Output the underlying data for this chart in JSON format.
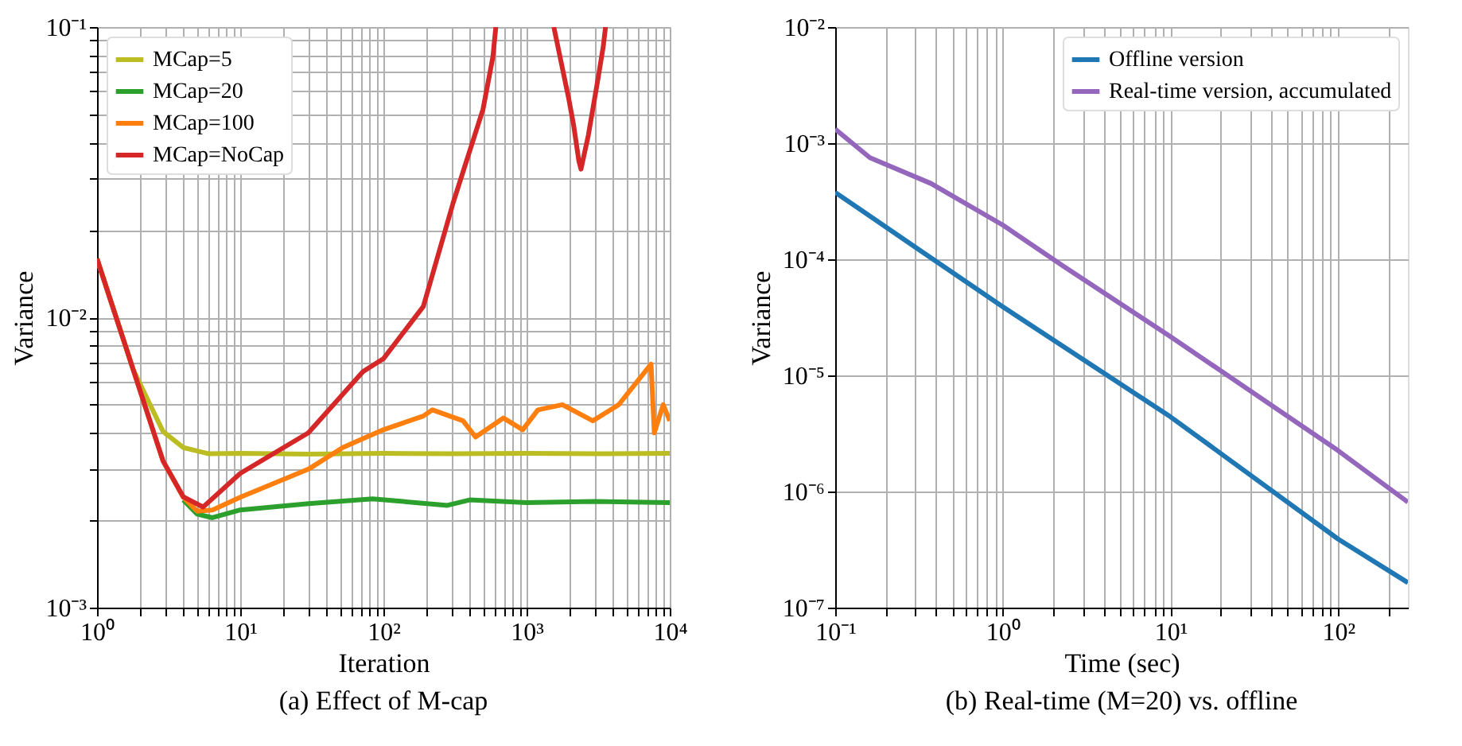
{
  "chart_data": [
    {
      "type": "line",
      "title": "(a) Effect of M-cap",
      "xlabel": "Iteration",
      "ylabel": "Variance",
      "log": "xy",
      "grid": true,
      "legend": "top left",
      "xlim": [
        1,
        10000
      ],
      "ylim": [
        0.001,
        0.1
      ],
      "xticks": [
        {
          "value": 1,
          "label": "10⁰"
        },
        {
          "value": 2,
          "label": null
        },
        {
          "value": 3,
          "label": null
        },
        {
          "value": 4,
          "label": null
        },
        {
          "value": 5,
          "label": null
        },
        {
          "value": 6,
          "label": null
        },
        {
          "value": 7,
          "label": null
        },
        {
          "value": 8,
          "label": null
        },
        {
          "value": 9,
          "label": null
        },
        {
          "value": 10,
          "label": "10¹"
        },
        {
          "value": 20,
          "label": null
        },
        {
          "value": 30,
          "label": null
        },
        {
          "value": 40,
          "label": null
        },
        {
          "value": 50,
          "label": null
        },
        {
          "value": 60,
          "label": null
        },
        {
          "value": 70,
          "label": null
        },
        {
          "value": 80,
          "label": null
        },
        {
          "value": 90,
          "label": null
        },
        {
          "value": 100,
          "label": "10²"
        },
        {
          "value": 200,
          "label": null
        },
        {
          "value": 300,
          "label": null
        },
        {
          "value": 400,
          "label": null
        },
        {
          "value": 500,
          "label": null
        },
        {
          "value": 600,
          "label": null
        },
        {
          "value": 700,
          "label": null
        },
        {
          "value": 800,
          "label": null
        },
        {
          "value": 900,
          "label": null
        },
        {
          "value": 1000,
          "label": "10³"
        },
        {
          "value": 2000,
          "label": null
        },
        {
          "value": 3000,
          "label": null
        },
        {
          "value": 4000,
          "label": null
        },
        {
          "value": 5000,
          "label": null
        },
        {
          "value": 6000,
          "label": null
        },
        {
          "value": 7000,
          "label": null
        },
        {
          "value": 8000,
          "label": null
        },
        {
          "value": 9000,
          "label": null
        },
        {
          "value": 10000,
          "label": "10⁴"
        }
      ],
      "yticks": [
        {
          "value": 0.001,
          "label": "10⁻³"
        },
        {
          "value": 0.002,
          "label": null
        },
        {
          "value": 0.003,
          "label": null
        },
        {
          "value": 0.004,
          "label": null
        },
        {
          "value": 0.005,
          "label": null
        },
        {
          "value": 0.006,
          "label": null
        },
        {
          "value": 0.007,
          "label": null
        },
        {
          "value": 0.008,
          "label": null
        },
        {
          "value": 0.009,
          "label": null
        },
        {
          "value": 0.01,
          "label": "10⁻²"
        },
        {
          "value": 0.02,
          "label": null
        },
        {
          "value": 0.03,
          "label": null
        },
        {
          "value": 0.04,
          "label": null
        },
        {
          "value": 0.05,
          "label": null
        },
        {
          "value": 0.06,
          "label": null
        },
        {
          "value": 0.07,
          "label": null
        },
        {
          "value": 0.08,
          "label": null
        },
        {
          "value": 0.09,
          "label": null
        },
        {
          "value": 0.1,
          "label": "10⁻¹"
        }
      ],
      "series": [
        {
          "name": "MCap=5",
          "color": "#bcbd22",
          "x": [
            1,
            1.79,
            2.89,
            4,
            6,
            10,
            30,
            100,
            300,
            1000,
            3000,
            10000
          ],
          "values": [
            0.0159,
            0.0066,
            0.00404,
            0.00356,
            0.00339,
            0.0034,
            0.00338,
            0.0034,
            0.00339,
            0.0034,
            0.00339,
            0.0034
          ]
        },
        {
          "name": "MCap=20",
          "color": "#2ca02c",
          "x": [
            4,
            5,
            6.4,
            10,
            30,
            84,
            280,
            400,
            1000,
            3000,
            10000
          ],
          "values": [
            0.00235,
            0.0021,
            0.00204,
            0.00217,
            0.00228,
            0.00237,
            0.00225,
            0.00235,
            0.0023,
            0.00232,
            0.0023
          ]
        },
        {
          "name": "MCap=100",
          "color": "#ff7f0e",
          "x": [
            1,
            2.89,
            4,
            5,
            6.4,
            10,
            30,
            52,
            100,
            190,
            220,
            360,
            440,
            690,
            940,
            1200,
            1780,
            2900,
            4400,
            7400,
            7800,
            9000,
            10000
          ],
          "values": [
            0.0159,
            0.0032,
            0.0024,
            0.00215,
            0.00217,
            0.0024,
            0.003,
            0.00356,
            0.0041,
            0.00457,
            0.0048,
            0.0044,
            0.00387,
            0.0045,
            0.0041,
            0.0048,
            0.005,
            0.0044,
            0.005,
            0.0069,
            0.004,
            0.005,
            0.0044
          ]
        },
        {
          "name": "MCap=NoCap",
          "color": "#d62728",
          "x": [
            1,
            2.89,
            4,
            5.5,
            10,
            29.9,
            72,
            100,
            190,
            307,
            496,
            582,
            610,
            1000,
            1550,
            1970,
            2130,
            2320,
            2400,
            2700,
            3160,
            3430,
            3560
          ],
          "values": [
            0.0159,
            0.0032,
            0.00241,
            0.00222,
            0.0029,
            0.004,
            0.0065,
            0.0072,
            0.0109,
            0.0248,
            0.052,
            0.079,
            0.1,
            null,
            0.1,
            0.0566,
            0.046,
            0.0345,
            0.0324,
            0.0424,
            0.0667,
            0.0855,
            0.1
          ]
        }
      ]
    },
    {
      "type": "line",
      "title": "(b) Real-time (M=20) vs. offline",
      "xlabel": "Time (sec)",
      "ylabel": "Variance",
      "log": "xy",
      "grid": true,
      "legend": "top right",
      "xlim": [
        0.1,
        261
      ],
      "ylim": [
        1e-07,
        0.01
      ],
      "xticks": [
        {
          "value": 0.1,
          "label": "10⁻¹"
        },
        {
          "value": 0.2,
          "label": null
        },
        {
          "value": 0.3,
          "label": null
        },
        {
          "value": 0.4,
          "label": null
        },
        {
          "value": 0.5,
          "label": null
        },
        {
          "value": 0.6,
          "label": null
        },
        {
          "value": 0.7,
          "label": null
        },
        {
          "value": 0.8,
          "label": null
        },
        {
          "value": 0.9,
          "label": null
        },
        {
          "value": 1,
          "label": "10⁰"
        },
        {
          "value": 2,
          "label": null
        },
        {
          "value": 3,
          "label": null
        },
        {
          "value": 4,
          "label": null
        },
        {
          "value": 5,
          "label": null
        },
        {
          "value": 6,
          "label": null
        },
        {
          "value": 7,
          "label": null
        },
        {
          "value": 8,
          "label": null
        },
        {
          "value": 9,
          "label": null
        },
        {
          "value": 10,
          "label": "10¹"
        },
        {
          "value": 20,
          "label": null
        },
        {
          "value": 30,
          "label": null
        },
        {
          "value": 40,
          "label": null
        },
        {
          "value": 50,
          "label": null
        },
        {
          "value": 60,
          "label": null
        },
        {
          "value": 70,
          "label": null
        },
        {
          "value": 80,
          "label": null
        },
        {
          "value": 90,
          "label": null
        },
        {
          "value": 100,
          "label": "10²"
        },
        {
          "value": 200,
          "label": null
        }
      ],
      "yticks": [
        {
          "value": 1e-07,
          "label": "10⁻⁷"
        },
        {
          "value": 1e-06,
          "label": "10⁻⁶"
        },
        {
          "value": 1e-05,
          "label": "10⁻⁵"
        },
        {
          "value": 0.0001,
          "label": "10⁻⁴"
        },
        {
          "value": 0.001,
          "label": "10⁻³"
        },
        {
          "value": 0.01,
          "label": "10⁻²"
        }
      ],
      "series": [
        {
          "name": "Offline version",
          "color": "#1f77b4",
          "x": [
            0.1,
            0.324,
            1,
            10,
            100,
            261
          ],
          "values": [
            0.000377,
            0.000118,
            3.9e-05,
            4.4e-06,
            3.9e-07,
            1.64e-07
          ]
        },
        {
          "name": "Real-time version, accumulated",
          "color": "#9467bd",
          "x": [
            0.1,
            0.161,
            0.372,
            1,
            2.3,
            10,
            100,
            261
          ],
          "values": [
            0.00132,
            0.00075,
            0.00045,
            0.000197,
            8.7e-05,
            2.16e-05,
            2.25e-06,
            8.1e-07
          ]
        }
      ]
    }
  ]
}
